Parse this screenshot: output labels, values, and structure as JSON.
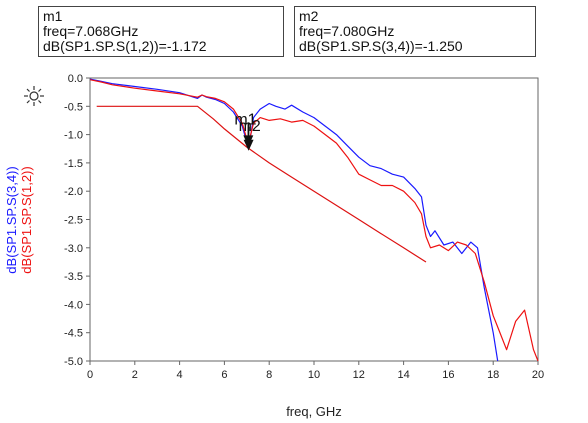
{
  "markers": [
    {
      "name": "m1",
      "freq_text": "freq=7.068GHz",
      "value_text": "dB(SP1.SP.S(1,2))=-1.172"
    },
    {
      "name": "m2",
      "freq_text": "freq=7.080GHz",
      "value_text": "dB(SP1.SP.S(3,4))=-1.250"
    }
  ],
  "chart_data": {
    "type": "line",
    "xlabel": "freq, GHz",
    "ylabel_series": [
      "dB(SP1.SP.S(3,4))",
      "dB(SP1.SP.S(1,2))"
    ],
    "xlim": [
      0,
      20
    ],
    "ylim": [
      -5.0,
      0.0
    ],
    "x_ticks": [
      0,
      2,
      4,
      6,
      8,
      10,
      12,
      14,
      16,
      18,
      20
    ],
    "y_ticks": [
      0.0,
      -0.5,
      -1.0,
      -1.5,
      -2.0,
      -2.5,
      -3.0,
      -3.5,
      -4.0,
      -4.5,
      -5.0
    ],
    "y_tick_labels": [
      "0.0",
      "-0.5",
      "-1.0",
      "-1.5",
      "-2.0",
      "-2.5",
      "-3.0",
      "-3.5",
      "-4.0",
      "-4.5",
      "-5.0"
    ],
    "grid": false,
    "series": [
      {
        "name": "dB(SP1.SP.S(3,4))",
        "color": "#1a1aff",
        "x": [
          0,
          0.5,
          1,
          2,
          3,
          4,
          4.8,
          5.0,
          5.2,
          5.6,
          6.0,
          6.4,
          6.8,
          7.08,
          7.3,
          7.6,
          8.0,
          8.3,
          8.7,
          9.0,
          9.5,
          10.0,
          10.5,
          11.0,
          11.5,
          12.0,
          12.5,
          13.0,
          13.5,
          14.0,
          14.5,
          14.8,
          15.0,
          15.2,
          15.4,
          15.8,
          16.2,
          16.6,
          17.0,
          17.3,
          17.6,
          18.0,
          18.2
        ],
        "y": [
          -0.02,
          -0.06,
          -0.1,
          -0.15,
          -0.2,
          -0.26,
          -0.36,
          -0.3,
          -0.34,
          -0.38,
          -0.45,
          -0.6,
          -0.85,
          -1.25,
          -0.7,
          -0.55,
          -0.45,
          -0.5,
          -0.55,
          -0.48,
          -0.6,
          -0.7,
          -0.85,
          -1.0,
          -1.2,
          -1.4,
          -1.55,
          -1.6,
          -1.7,
          -1.75,
          -1.95,
          -2.1,
          -2.6,
          -2.8,
          -2.7,
          -2.95,
          -2.9,
          -3.1,
          -2.9,
          -3.0,
          -3.7,
          -4.5,
          -5.0
        ]
      },
      {
        "name": "dB(SP1.SP.S(1,2))",
        "color": "#ee1111",
        "x": [
          0,
          0.5,
          1,
          2,
          3,
          4,
          4.8,
          5.0,
          5.2,
          5.6,
          6.0,
          6.4,
          6.8,
          7.068,
          7.3,
          7.6,
          8.0,
          8.5,
          9.0,
          9.5,
          10.0,
          10.5,
          11.0,
          11.5,
          12.0,
          12.5,
          13.0,
          13.5,
          14.0,
          14.5,
          14.8,
          15.0,
          15.2,
          15.6,
          16.0,
          16.4,
          16.8,
          17.2,
          17.6,
          18.0,
          18.2,
          18.6,
          19.0,
          19.4,
          19.8,
          20.0
        ],
        "y": [
          -0.03,
          -0.07,
          -0.12,
          -0.18,
          -0.23,
          -0.28,
          -0.34,
          -0.3,
          -0.33,
          -0.36,
          -0.42,
          -0.55,
          -0.8,
          -1.17,
          -0.8,
          -0.7,
          -0.75,
          -0.72,
          -0.78,
          -0.75,
          -0.85,
          -1.0,
          -1.15,
          -1.4,
          -1.7,
          -1.8,
          -1.9,
          -1.9,
          -2.0,
          -2.2,
          -2.4,
          -2.8,
          -3.0,
          -2.95,
          -3.05,
          -2.9,
          -2.95,
          -3.1,
          -3.6,
          -4.2,
          -4.4,
          -4.8,
          -4.3,
          -4.1,
          -4.8,
          -5.0
        ]
      },
      {
        "name": "",
        "color": "#dd1111",
        "x": [
          0.3,
          1,
          2,
          3,
          4,
          4.8,
          5.5,
          6.0,
          7.0,
          8.0,
          9.0,
          10.0,
          11.0,
          12.0,
          13.0,
          14.0,
          15.0
        ],
        "y": [
          -0.5,
          -0.5,
          -0.5,
          -0.5,
          -0.5,
          -0.5,
          -0.72,
          -0.9,
          -1.22,
          -1.5,
          -1.75,
          -2.0,
          -2.25,
          -2.5,
          -2.75,
          -3.0,
          -3.25
        ]
      }
    ],
    "chart_markers": [
      {
        "label": "m1",
        "x": 7.068,
        "y": -1.172
      },
      {
        "label": "m2",
        "x": 7.08,
        "y": -1.25
      }
    ]
  }
}
